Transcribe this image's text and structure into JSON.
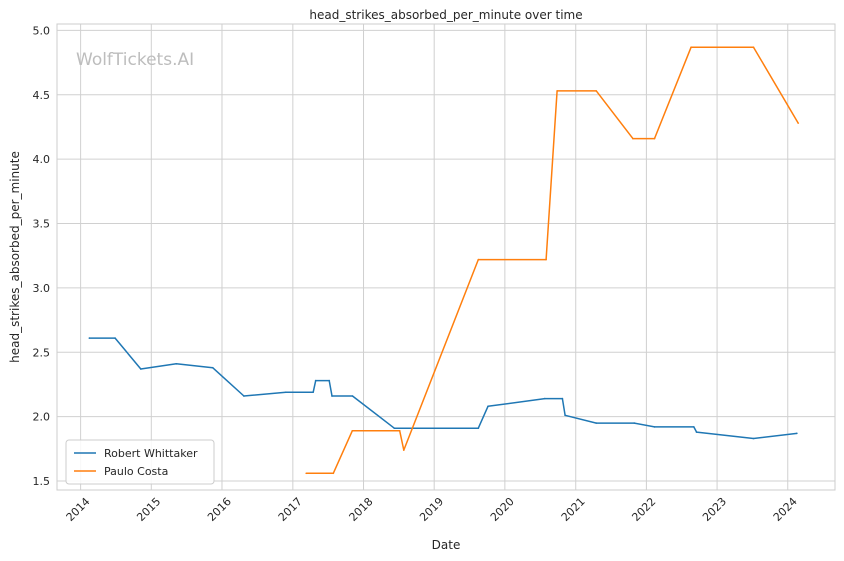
{
  "chart_data": {
    "type": "line",
    "title": "head_strikes_absorbed_per_minute over time",
    "xlabel": "Date",
    "ylabel": "head_strikes_absorbed_per_minute",
    "watermark": "WolfTickets.AI",
    "x_ticks": [
      "2014",
      "2015",
      "2016",
      "2017",
      "2018",
      "2019",
      "2020",
      "2021",
      "2022",
      "2023",
      "2024"
    ],
    "y_ticks": [
      "1.5",
      "2.0",
      "2.5",
      "3.0",
      "3.5",
      "4.0",
      "4.5",
      "5.0"
    ],
    "xlim": [
      "2013-09-01",
      "2024-09-01"
    ],
    "ylim": [
      1.43,
      5.05
    ],
    "grid": true,
    "legend_position": "lower-left",
    "series": [
      {
        "name": "Robert Whittaker",
        "color": "#1f77b4",
        "points": [
          [
            "2014-02-15",
            2.61
          ],
          [
            "2014-06-28",
            2.61
          ],
          [
            "2014-11-08",
            2.37
          ],
          [
            "2015-05-10",
            2.41
          ],
          [
            "2015-11-14",
            2.38
          ],
          [
            "2016-04-23",
            2.16
          ],
          [
            "2016-11-26",
            2.19
          ],
          [
            "2017-04-16",
            2.19
          ],
          [
            "2017-04-29",
            2.28
          ],
          [
            "2017-07-08",
            2.28
          ],
          [
            "2017-07-22",
            2.16
          ],
          [
            "2017-11-05",
            2.16
          ],
          [
            "2018-06-09",
            1.91
          ],
          [
            "2019-08-17",
            1.91
          ],
          [
            "2019-10-06",
            2.08
          ],
          [
            "2020-07-25",
            2.14
          ],
          [
            "2020-10-24",
            2.14
          ],
          [
            "2020-11-07",
            2.01
          ],
          [
            "2021-04-17",
            1.95
          ],
          [
            "2021-10-30",
            1.95
          ],
          [
            "2022-02-12",
            1.92
          ],
          [
            "2022-09-03",
            1.92
          ],
          [
            "2022-09-17",
            1.88
          ],
          [
            "2023-07-08",
            1.83
          ],
          [
            "2024-02-17",
            1.87
          ]
        ]
      },
      {
        "name": "Paulo Costa",
        "color": "#ff7f0e",
        "points": [
          [
            "2017-03-11",
            1.56
          ],
          [
            "2017-07-29",
            1.56
          ],
          [
            "2017-11-04",
            1.89
          ],
          [
            "2018-07-07",
            1.89
          ],
          [
            "2018-07-28",
            1.74
          ],
          [
            "2019-08-17",
            3.22
          ],
          [
            "2020-08-01",
            3.22
          ],
          [
            "2020-09-27",
            4.53
          ],
          [
            "2021-04-17",
            4.53
          ],
          [
            "2021-10-23",
            4.16
          ],
          [
            "2022-02-12",
            4.16
          ],
          [
            "2022-08-20",
            4.87
          ],
          [
            "2023-07-08",
            4.87
          ],
          [
            "2024-02-24",
            4.28
          ]
        ]
      }
    ]
  }
}
